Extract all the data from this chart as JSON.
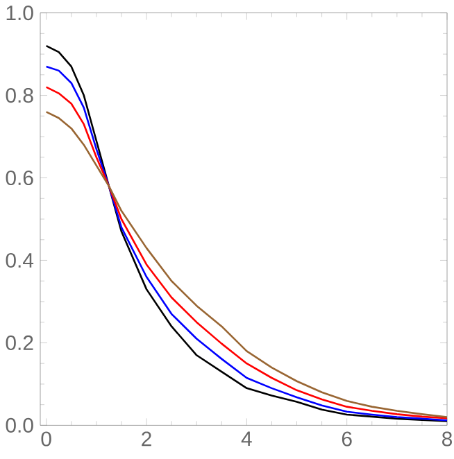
{
  "chart_data": {
    "type": "line",
    "xlim": [
      -0.12,
      8
    ],
    "ylim": [
      0,
      1
    ],
    "xticks": [
      0,
      2,
      4,
      6,
      8
    ],
    "yticks": [
      {
        "value": 0,
        "label": "0.0"
      },
      {
        "value": 0.2,
        "label": "0.2"
      },
      {
        "value": 0.4,
        "label": "0.4"
      },
      {
        "value": 0.6,
        "label": "0.6"
      },
      {
        "value": 0.8,
        "label": "0.8"
      },
      {
        "value": 1,
        "label": "1.0"
      }
    ],
    "x": [
      0,
      0.25,
      0.5,
      0.75,
      1,
      1.25,
      1.5,
      2,
      2.5,
      3,
      3.5,
      4,
      4.5,
      5,
      5.5,
      6,
      6.5,
      7,
      7.5,
      8
    ],
    "series": [
      {
        "color": "#000000",
        "values": [
          0.92,
          0.905,
          0.87,
          0.8,
          0.69,
          0.58,
          0.47,
          0.33,
          0.24,
          0.17,
          0.13,
          0.09,
          0.072,
          0.057,
          0.038,
          0.026,
          0.021,
          0.016,
          0.013,
          0.01
        ]
      },
      {
        "color": "#0000ff",
        "values": [
          0.87,
          0.86,
          0.83,
          0.77,
          0.67,
          0.58,
          0.48,
          0.36,
          0.27,
          0.21,
          0.161,
          0.115,
          0.09,
          0.068,
          0.048,
          0.033,
          0.026,
          0.02,
          0.016,
          0.012
        ]
      },
      {
        "color": "#ff0000",
        "values": [
          0.82,
          0.805,
          0.78,
          0.73,
          0.65,
          0.58,
          0.5,
          0.39,
          0.31,
          0.25,
          0.198,
          0.15,
          0.115,
          0.085,
          0.063,
          0.045,
          0.035,
          0.027,
          0.021,
          0.017
        ]
      },
      {
        "color": "#996633",
        "values": [
          0.76,
          0.745,
          0.72,
          0.68,
          0.63,
          0.58,
          0.52,
          0.43,
          0.35,
          0.29,
          0.24,
          0.18,
          0.14,
          0.107,
          0.08,
          0.059,
          0.045,
          0.035,
          0.027,
          0.02
        ]
      }
    ]
  }
}
